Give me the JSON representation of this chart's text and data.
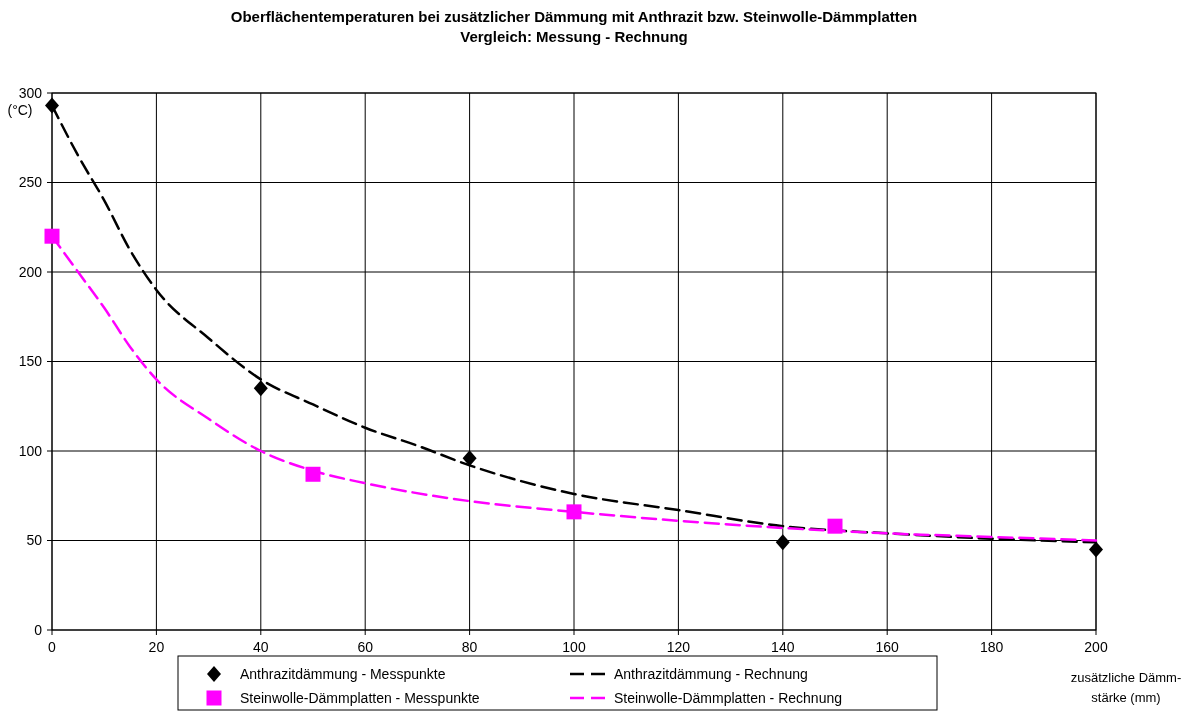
{
  "chart_data": {
    "type": "line",
    "title": "Oberflächentemperaturen bei zusätzlicher Dämmung mit Anthrazit bzw. Steinwolle-Dämmplatten",
    "subtitle": "Vergleich: Messung - Rechnung",
    "xlabel": "zusätzliche Dämm-\nstärke (mm)",
    "ylabel": "(°C)",
    "xlim": [
      0,
      200
    ],
    "xticks": [
      0,
      20,
      40,
      60,
      80,
      100,
      120,
      140,
      160,
      180,
      200
    ],
    "ylim": [
      0,
      300
    ],
    "yticks": [
      0,
      50,
      100,
      150,
      200,
      250,
      300
    ],
    "grid": true,
    "legend": "bottom",
    "series": [
      {
        "name": "Anthrazitdämmung - Messpunkte",
        "type": "scatter",
        "marker": "diamond",
        "color": "#000000",
        "x": [
          0,
          40,
          80,
          140,
          200
        ],
        "values": [
          293,
          135,
          96,
          49,
          45
        ]
      },
      {
        "name": "Anthrazitdämmung - Rechnung",
        "type": "line",
        "line_style": "dashed",
        "marker": "none",
        "color": "#000000",
        "x": [
          0,
          5,
          10,
          15,
          20,
          30,
          40,
          50,
          60,
          70,
          80,
          100,
          120,
          140,
          160,
          180,
          200
        ],
        "values": [
          293,
          265,
          240,
          212,
          190,
          163,
          140,
          126,
          113,
          103,
          92,
          76,
          67,
          58,
          54,
          51,
          49
        ]
      },
      {
        "name": "Steinwolle-Dämmplatten - Messpunkte",
        "type": "scatter",
        "marker": "square",
        "color": "#ff00ff",
        "x": [
          0,
          50,
          100,
          150
        ],
        "values": [
          220,
          87,
          66,
          58
        ]
      },
      {
        "name": "Steinwolle-Dämmplatten - Rechnung",
        "type": "line",
        "line_style": "dashed",
        "marker": "none",
        "color": "#ff00ff",
        "x": [
          0,
          5,
          10,
          15,
          20,
          30,
          40,
          50,
          60,
          80,
          100,
          120,
          140,
          160,
          180,
          200
        ],
        "values": [
          220,
          200,
          180,
          158,
          140,
          118,
          100,
          89,
          82,
          72,
          66,
          61,
          57,
          54,
          52,
          50
        ]
      }
    ]
  }
}
